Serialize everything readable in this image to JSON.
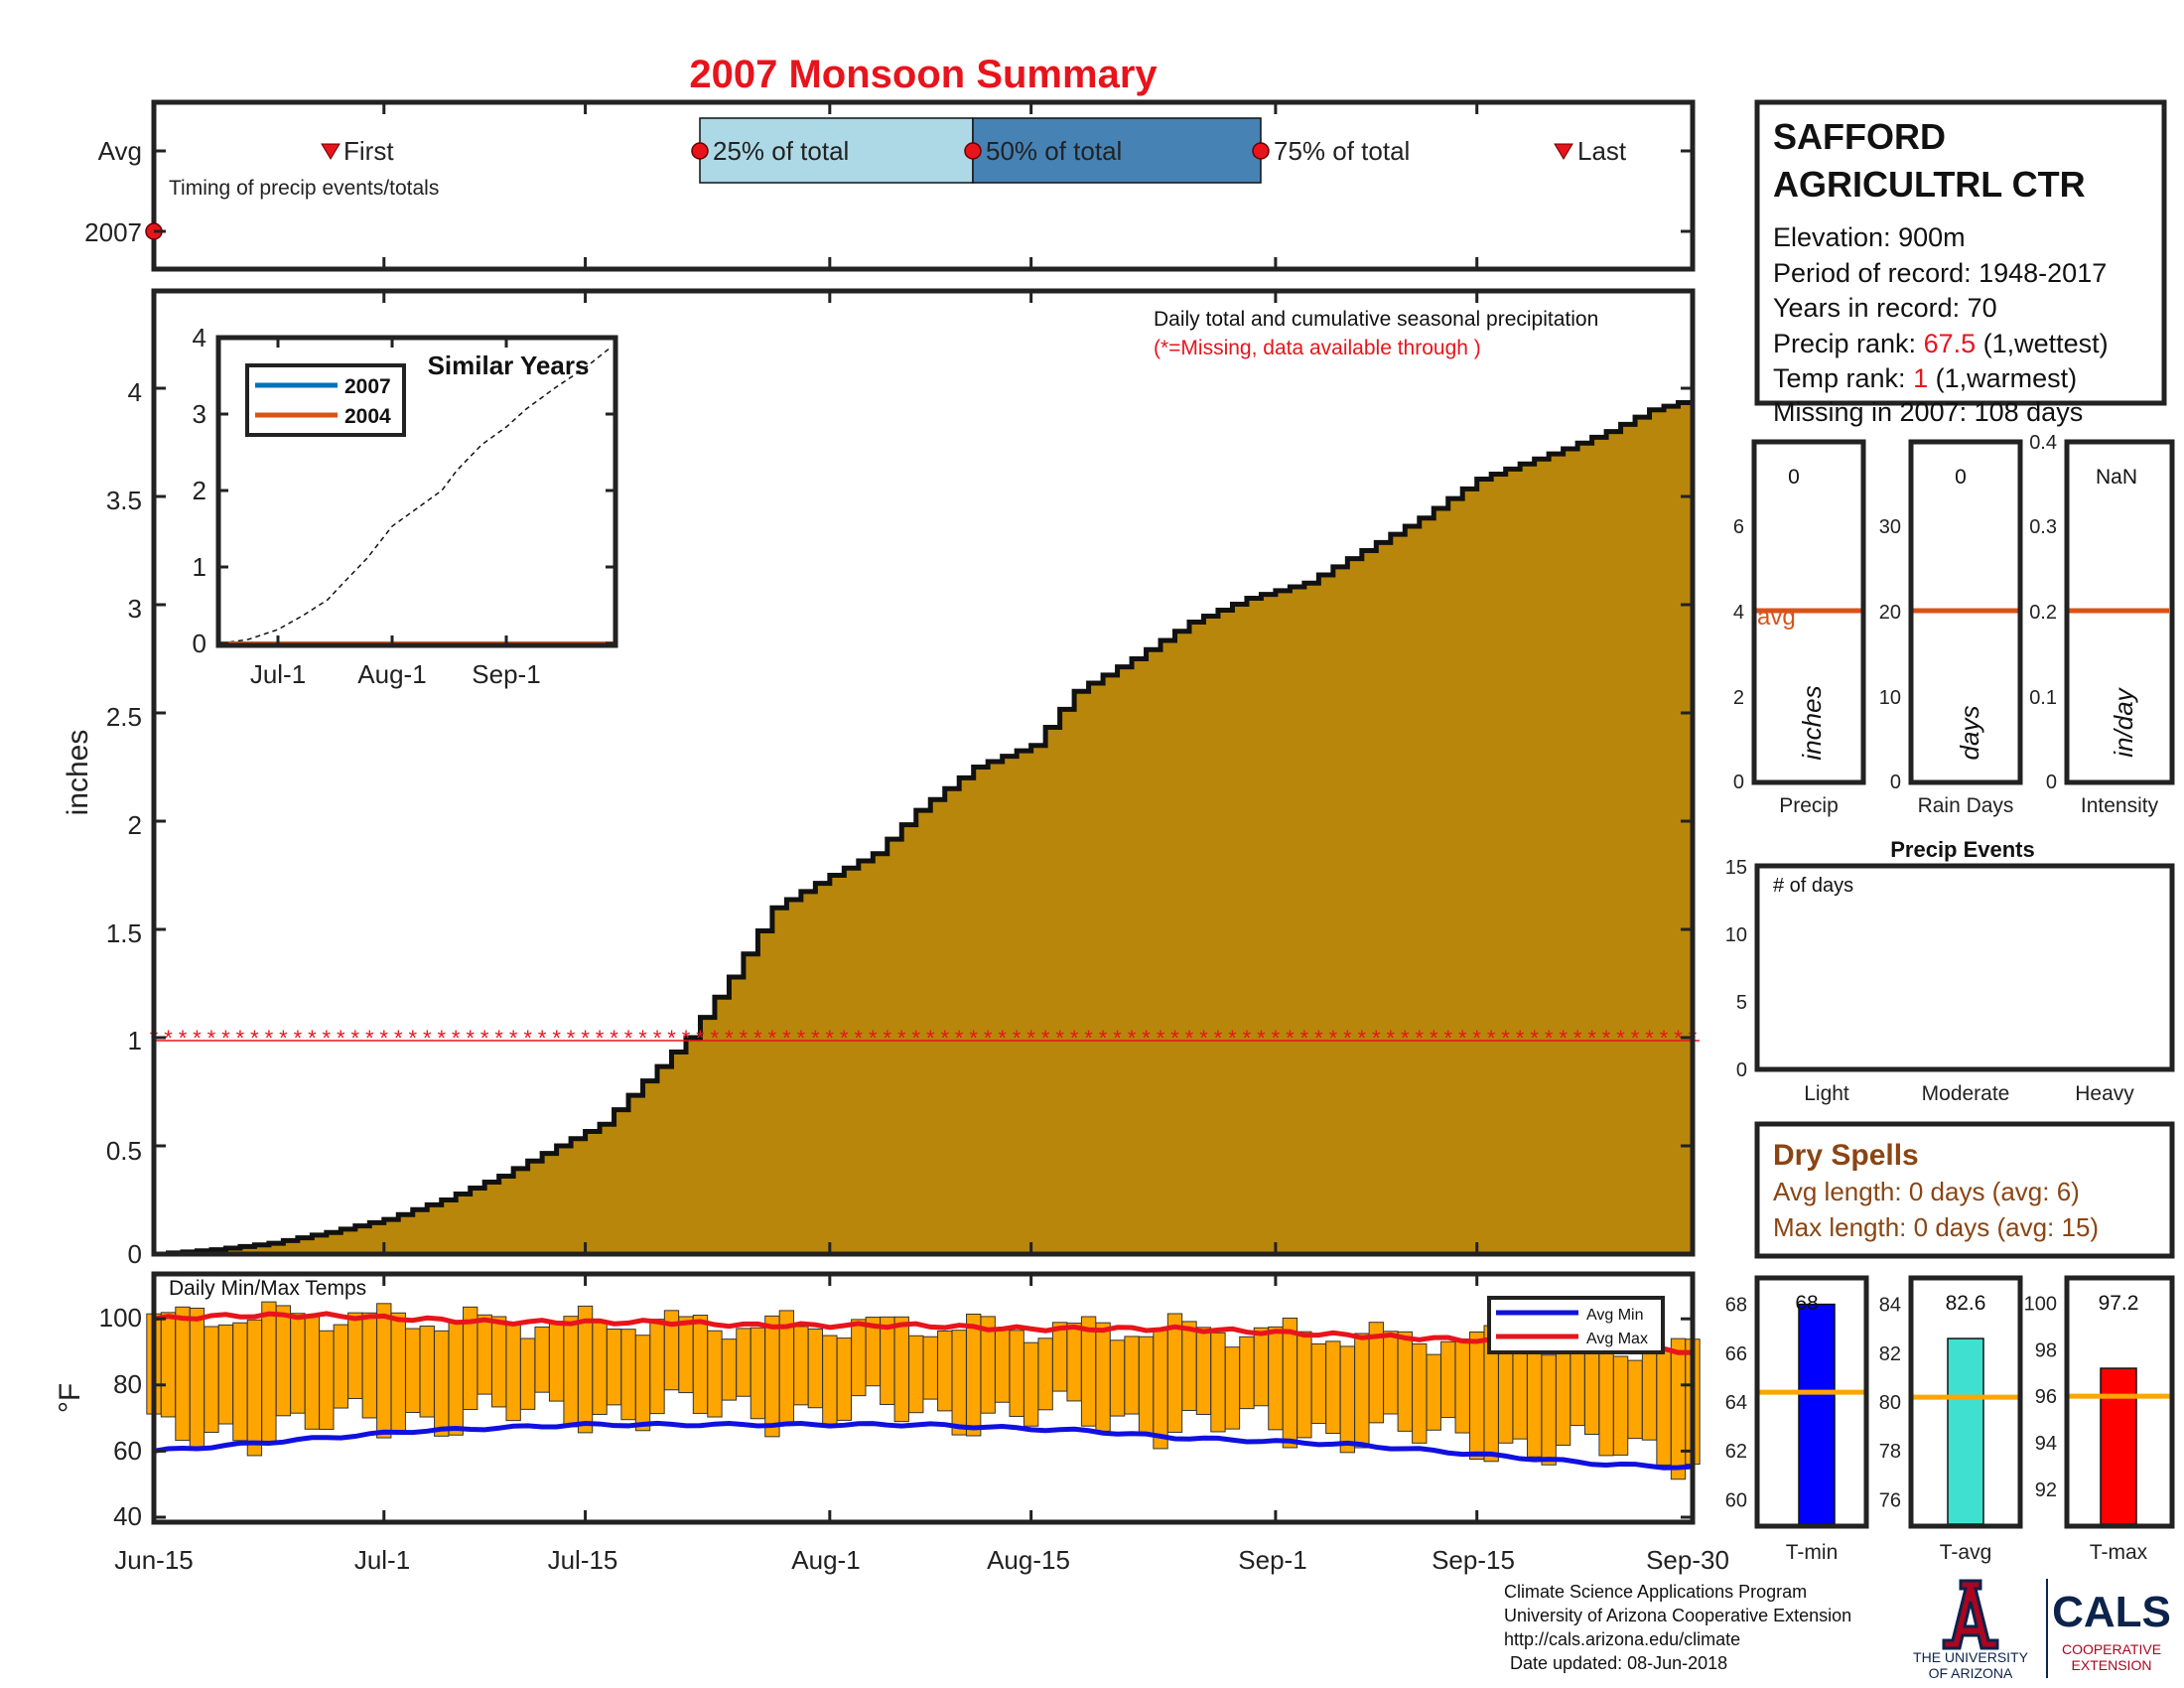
{
  "title": "2007 Monsoon Summary",
  "colors": {
    "title": "#e8141c",
    "cumulative_fill": "#b8860b",
    "q1": "#add8e6",
    "q2": "#4682b4",
    "temp_bar": "#ffa500",
    "avg_min": "#1010e0",
    "avg_max": "#e8141c",
    "tmin": "#0000ff",
    "tavg": "#40e0d0",
    "tmax": "#ff0000",
    "avg_line": "#d95319",
    "dry_spells": "#8b4513",
    "ua_red": "#ab0520",
    "ua_blue": "#0c234b"
  },
  "timing": {
    "y_labels": [
      "Avg",
      "2007"
    ],
    "caption": "Timing of precip events/totals",
    "first": "First",
    "last": "Last",
    "q25": "25% of total",
    "q50": "50% of total",
    "q75": "75% of total"
  },
  "station": {
    "name_line1": "SAFFORD",
    "name_line2": "AGRICULTRL CTR",
    "elevation": "Elevation: 900m",
    "period": "Period of record: 1948-2017",
    "years": "Years in record: 70",
    "precip_rank_label": "Precip rank: ",
    "precip_rank_value": "67.5",
    "precip_rank_note": " (1,wettest)",
    "temp_rank_label": "Temp rank: ",
    "temp_rank_value": "1",
    "temp_rank_note": " (1,warmest)",
    "missing": "Missing in 2007: 108 days"
  },
  "main": {
    "annotation1": "Daily total and cumulative seasonal precipitation",
    "annotation2": "(*=Missing, data available through )",
    "ylabel": "inches",
    "yticks": [
      "0",
      "0.5",
      "1",
      "1.5",
      "2",
      "2.5",
      "3",
      "3.5",
      "4"
    ],
    "xticks": [
      "Jun-15",
      "Jul-1",
      "Jul-15",
      "Aug-1",
      "Aug-15",
      "Sep-1",
      "Sep-15",
      "Sep-30"
    ]
  },
  "inset": {
    "title": "Similar Years",
    "legend": [
      "2007",
      "2004"
    ],
    "yticks": [
      "0",
      "1",
      "2",
      "3",
      "4"
    ],
    "xticks": [
      "Jul-1",
      "Aug-1",
      "Sep-1"
    ]
  },
  "temps": {
    "caption": "Daily Min/Max Temps",
    "ylabel": "°F",
    "yticks": [
      "40",
      "60",
      "80",
      "100"
    ],
    "legend": [
      "Avg Min",
      "Avg Max"
    ]
  },
  "small_bars": {
    "precip": {
      "value_text": "0",
      "label": "Precip",
      "unit": "inches",
      "avg_text": "avg",
      "yticks": [
        "0",
        "2",
        "4",
        "6"
      ]
    },
    "rain_days": {
      "value_text": "0",
      "label": "Rain Days",
      "unit": "days",
      "yticks": [
        "0",
        "10",
        "20",
        "30"
      ]
    },
    "intensity": {
      "value_text": "NaN",
      "label": "Intensity",
      "unit": "in/day",
      "yticks": [
        "0",
        "0.1",
        "0.2",
        "0.3",
        "0.4"
      ]
    }
  },
  "precip_events": {
    "title": "Precip Events",
    "caption": "# of days",
    "categories": [
      "Light",
      "Moderate",
      "Heavy"
    ],
    "yticks": [
      "0",
      "5",
      "10",
      "15"
    ]
  },
  "dry_spells": {
    "title": "Dry Spells",
    "avg_length": "Avg length: 0 days (avg: 6)",
    "max_length": "Max length: 0 days (avg: 15)"
  },
  "temp_bars": {
    "tmin": {
      "label": "T-min",
      "value_text": "68",
      "yticks": [
        "60",
        "62",
        "64",
        "66",
        "68"
      ]
    },
    "tavg": {
      "label": "T-avg",
      "value_text": "82.6",
      "yticks": [
        "76",
        "78",
        "80",
        "82",
        "84"
      ]
    },
    "tmax": {
      "label": "T-max",
      "value_text": "97.2",
      "yticks": [
        "92",
        "94",
        "96",
        "98",
        "100"
      ]
    }
  },
  "footer": {
    "line1": "Climate Science Applications Program",
    "line2": "University of Arizona Cooperative Extension",
    "line3": "http://cals.arizona.edu/climate",
    "line4": "Date updated: 08-Jun-2018",
    "ua_line1": "THE UNIVERSITY",
    "ua_line2": "OF ARIZONA",
    "cals": "CALS",
    "cals_sub1": "COOPERATIVE",
    "cals_sub2": "EXTENSION"
  },
  "chart_data": [
    {
      "type": "area",
      "title": "2007 Monsoon Summary",
      "ylabel": "inches",
      "xlim": [
        "Jun-15",
        "Sep-30"
      ],
      "ylim": [
        0,
        4.5
      ],
      "series": [
        {
          "values": [
            0,
            0.02,
            0.05,
            0.1,
            0.16,
            0.25,
            0.36,
            0.5,
            0.6,
            0.8,
            1.0,
            1.28,
            1.6,
            1.75,
            1.85,
            2.05,
            2.25,
            2.35,
            2.6,
            2.75,
            2.92,
            3.03,
            3.1,
            3.25,
            3.4,
            3.58,
            3.65,
            3.72,
            3.8,
            3.9,
            3.95
          ],
          "x": [
            "Jun-15",
            "Jun-19",
            "Jun-23",
            "Jun-27",
            "Jul-1",
            "Jul-5",
            "Jul-9",
            "Jul-13",
            "Jul-16",
            "Jul-19",
            "Jul-22",
            "Jul-25",
            "Jul-28",
            "Aug-1",
            "Aug-4",
            "Aug-7",
            "Aug-11",
            "Aug-15",
            "Aug-18",
            "Aug-22",
            "Aug-26",
            "Aug-30",
            "Sep-3",
            "Sep-7",
            "Sep-11",
            "Sep-15",
            "Sep-18",
            "Sep-21",
            "Sep-24",
            "Sep-27",
            "Sep-30"
          ]
        },
        {
          "name": "*=Missing",
          "values": [
            1,
            1
          ]
        }
      ]
    },
    {
      "type": "line",
      "title": "Similar Years",
      "x": [
        "Jul-1",
        "Aug-1",
        "Sep-1"
      ],
      "ylim": [
        0,
        4
      ],
      "series": [
        {
          "name": "2007",
          "values": [
            0,
            0,
            0
          ]
        },
        {
          "name": "2004",
          "values": [
            0,
            0,
            0
          ]
        }
      ]
    },
    {
      "type": "bar",
      "title": "Daily Min/Max Temps",
      "ylabel": "°F",
      "ylim": [
        40,
        110
      ],
      "series": [
        {
          "name": "Avg Min",
          "values": [
            60,
            62,
            64,
            66,
            67,
            68,
            68,
            68,
            68,
            68,
            67,
            66,
            64,
            63,
            62,
            60,
            58,
            56,
            55
          ]
        },
        {
          "name": "Avg Max",
          "values": [
            100,
            101,
            101,
            100,
            99,
            99,
            99,
            98,
            98,
            98,
            97,
            97,
            97,
            96,
            95,
            94,
            93,
            92,
            90
          ]
        }
      ]
    },
    {
      "type": "bar",
      "categories": [
        "Precip"
      ],
      "values": [
        0
      ],
      "avg": 4,
      "ylim": [
        0,
        8
      ]
    },
    {
      "type": "bar",
      "categories": [
        "Rain Days"
      ],
      "values": [
        0
      ],
      "avg": 20,
      "ylim": [
        0,
        40
      ]
    },
    {
      "type": "bar",
      "categories": [
        "Intensity"
      ],
      "values": [
        0
      ],
      "avg": 0.2,
      "ylim": [
        0,
        0.4
      ]
    },
    {
      "type": "bar",
      "title": "Precip Events",
      "categories": [
        "Light",
        "Moderate",
        "Heavy"
      ],
      "values": [
        0,
        0,
        0
      ],
      "ylim": [
        0,
        15
      ]
    },
    {
      "type": "bar",
      "categories": [
        "T-min",
        "T-avg",
        "T-max"
      ],
      "values": [
        68,
        82.6,
        97.2
      ],
      "avg": [
        64.4,
        80.2,
        96.0
      ],
      "ylims": [
        [
          59,
          69
        ],
        [
          75,
          85
        ],
        [
          90.5,
          101
        ]
      ]
    }
  ]
}
